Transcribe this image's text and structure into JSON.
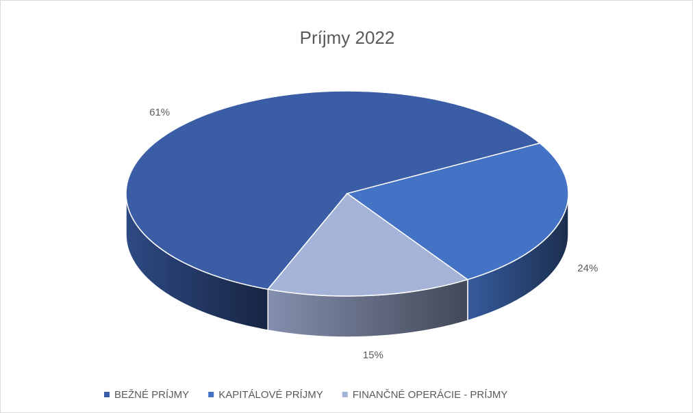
{
  "chart_data": {
    "type": "pie",
    "title": "Príjmy 2022",
    "categories": [
      "BEŽNÉ PRÍJMY",
      "KAPITÁLOVÉ PRÍJMY",
      "FINANČNÉ OPERÁCIE - PRÍJMY"
    ],
    "values": [
      61,
      24,
      15
    ],
    "value_labels": [
      "61%",
      "24%",
      "15%"
    ],
    "colors": [
      "#3a5da5",
      "#4472c4",
      "#a5b3d9"
    ],
    "legend": "bottom"
  }
}
